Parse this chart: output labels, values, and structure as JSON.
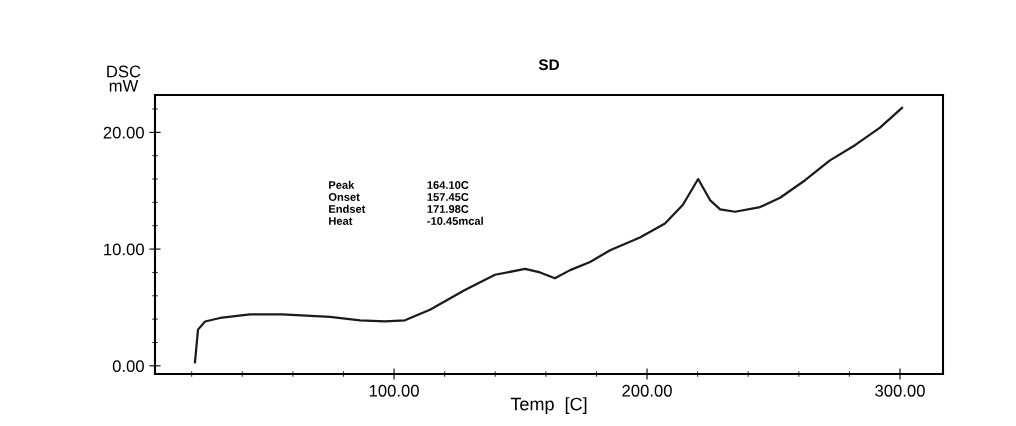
{
  "chart_data": {
    "type": "line",
    "title": "SD",
    "ylabel": "DSC\nmW",
    "xlabel": "Temp  [C]",
    "x": [
      21.3,
      22.5,
      25.3,
      31.2,
      43.1,
      55.7,
      74.7,
      86.6,
      96.4,
      104.3,
      114.2,
      128,
      139.9,
      151.8,
      157.7,
      163.6,
      169.6,
      177.5,
      185.4,
      197.2,
      207.1,
      214.2,
      220.2,
      224.9,
      228.9,
      234.8,
      244.7,
      252.6,
      262.5,
      272.3,
      282.2,
      292.1,
      300.8
    ],
    "series": [
      {
        "color": "#1a1a1a",
        "values": [
          0.3,
          3.1,
          3.8,
          4.1,
          4.4,
          4.4,
          4.2,
          3.9,
          3.8,
          3.9,
          4.8,
          6.5,
          7.8,
          8.3,
          8.0,
          7.5,
          8.2,
          8.9,
          9.9,
          11.0,
          12.2,
          13.8,
          16.0,
          14.2,
          13.4,
          13.2,
          13.6,
          14.4,
          15.9,
          17.6,
          18.9,
          20.4,
          22.1
        ]
      }
    ],
    "xlim": [
      5.5,
      317
    ],
    "ylim": [
      -0.7,
      23.2
    ],
    "xticks": [
      {
        "value": 100,
        "label": "100.00"
      },
      {
        "value": 200,
        "label": "200.00"
      },
      {
        "value": 300,
        "label": "300.00"
      }
    ],
    "yticks": [
      {
        "value": 0,
        "label": "0.00"
      },
      {
        "value": 10,
        "label": "10.00"
      },
      {
        "value": 20,
        "label": "20.00"
      }
    ],
    "grid": false,
    "legend": false,
    "marker": "none",
    "line_style": "solid",
    "annotations": [
      "Peak",
      "164.10C",
      "Onset",
      "157.45C",
      "Endset",
      "171.98C",
      "Heat",
      "-10.45mcal"
    ]
  }
}
